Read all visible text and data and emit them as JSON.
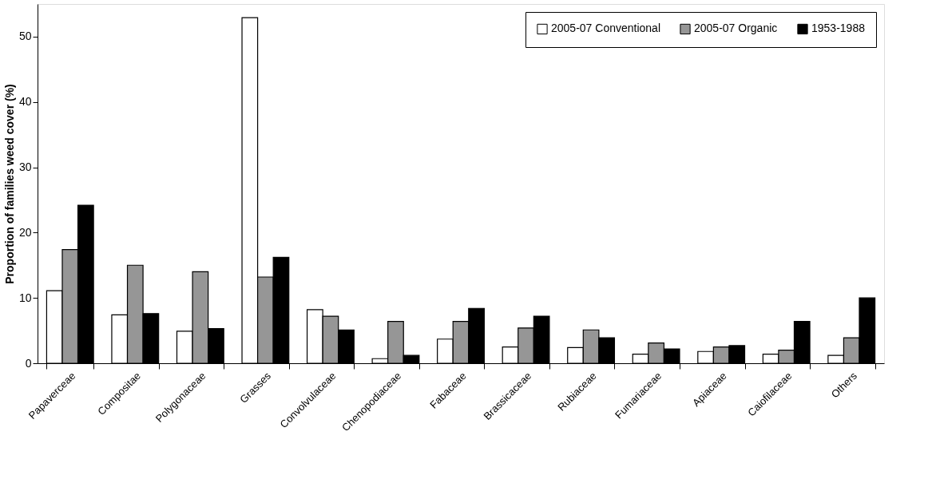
{
  "chart_data": {
    "type": "bar",
    "ylabel": "Proportion of families weed cover (%)",
    "categories": [
      "Papaverceae",
      "Compositae",
      "Polygonaceae",
      "Grasses",
      "Convolvulaceae",
      "Chenopodiaceae",
      "Fabaceae",
      "Brassicaceae",
      "Rubiaceae",
      "Fumariaceae",
      "Apiaceae",
      "Caiofilaceae",
      "Others"
    ],
    "series": [
      {
        "name": "2005-07 Conventional",
        "color": "#ffffff",
        "values": [
          11.1,
          7.4,
          4.9,
          52.9,
          8.2,
          0.7,
          3.7,
          2.5,
          2.4,
          1.4,
          1.8,
          1.4,
          1.2
        ]
      },
      {
        "name": "2005-07 Organic",
        "color": "#969696",
        "values": [
          17.4,
          15.0,
          14.0,
          13.2,
          7.2,
          6.4,
          6.4,
          5.4,
          5.1,
          3.1,
          2.5,
          2.0,
          3.9
        ]
      },
      {
        "name": "1953-1988",
        "color": "#000000",
        "values": [
          24.2,
          7.6,
          5.3,
          16.2,
          5.1,
          1.2,
          8.4,
          7.2,
          3.9,
          2.2,
          2.7,
          6.4,
          10.0
        ]
      }
    ],
    "ylim": [
      0,
      55
    ],
    "yticks": [
      0,
      10,
      20,
      30,
      40,
      50
    ],
    "grid": false,
    "legend": "top right"
  }
}
